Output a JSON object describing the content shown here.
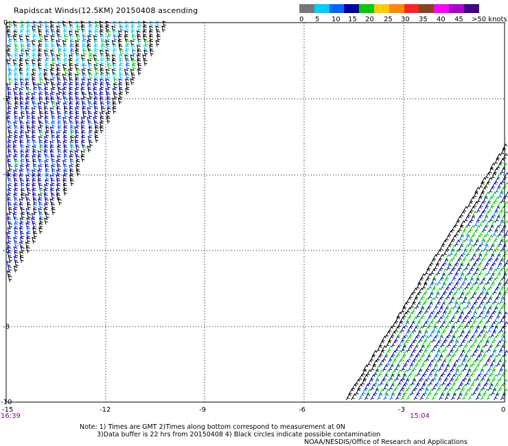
{
  "title": "Rapidscat Winds(12.5KM) 20150408 ascending",
  "legend": {
    "colors": [
      "#777777",
      "#00ccff",
      "#0066ff",
      "#0000aa",
      "#00cc00",
      "#ffcc00",
      "#ff8800",
      "#ff2222",
      "#884422",
      "#ff00ff",
      "#aa00cc",
      "#440088"
    ],
    "labels": [
      "0",
      "5",
      "10",
      "15",
      "20",
      "25",
      "30",
      "35",
      "40",
      "45",
      ">50 knots"
    ]
  },
  "map": {
    "x_ticks": [
      "-15",
      "-12",
      "-9",
      "-6",
      "-3",
      "0"
    ],
    "y_ticks": [
      "0",
      "-2",
      "-4",
      "-6",
      "-8",
      "-10"
    ],
    "pass_times": [
      "16:39",
      "15:04"
    ]
  },
  "notes": {
    "line1": "Note: 1) Times are GMT 2)Times along bottom correspond to measurement at 0N",
    "line2": "3)Data buffer is 22 hrs from 20150408 4) Black circles indicate possible contamination",
    "credit": "NOAA/NESDIS/Office of Research and Applications"
  }
}
